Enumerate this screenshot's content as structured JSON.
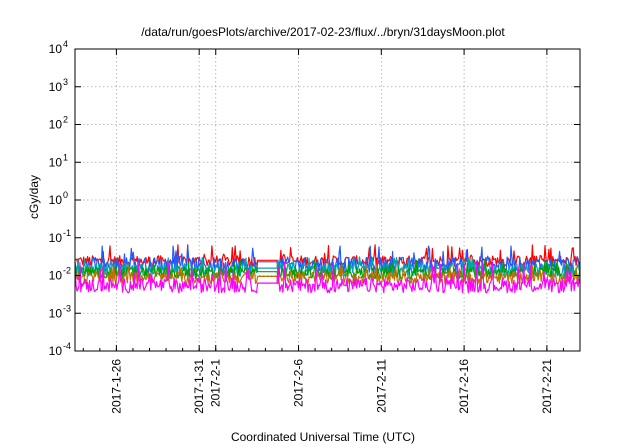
{
  "chart_data": {
    "type": "line",
    "title": "/data/run/goesPlots/archive/2017-02-23/flux/../bryn/31daysMoon.plot",
    "xlabel": "Coordinated Universal Time (UTC)",
    "ylabel": "cGy/day",
    "yscale": "log",
    "ylim": [
      0.0001,
      10000
    ],
    "xlim": [
      "2017-01-23T12:00",
      "2017-02-23T00:00"
    ],
    "grid": true,
    "legend": "none",
    "yticks": [
      {
        "value": 0.0001,
        "mantissa": "10",
        "exp": "-4"
      },
      {
        "value": 0.001,
        "mantissa": "10",
        "exp": "-3"
      },
      {
        "value": 0.01,
        "mantissa": "10",
        "exp": "-2"
      },
      {
        "value": 0.1,
        "mantissa": "10",
        "exp": "-1"
      },
      {
        "value": 1,
        "mantissa": "10",
        "exp": "0"
      },
      {
        "value": 10,
        "mantissa": "10",
        "exp": "1"
      },
      {
        "value": 100,
        "mantissa": "10",
        "exp": "2"
      },
      {
        "value": 1000,
        "mantissa": "10",
        "exp": "3"
      },
      {
        "value": 10000,
        "mantissa": "10",
        "exp": "4"
      }
    ],
    "xticks": [
      {
        "date": "2017-01-26",
        "label": "2017-1-26"
      },
      {
        "date": "2017-01-31",
        "label": "2017-1-31"
      },
      {
        "date": "2017-02-01",
        "label": "2017-2-1"
      },
      {
        "date": "2017-02-06",
        "label": "2017-2-6"
      },
      {
        "date": "2017-02-11",
        "label": "2017-2-11"
      },
      {
        "date": "2017-02-16",
        "label": "2017-2-16"
      },
      {
        "date": "2017-02-21",
        "label": "2017-2-21"
      }
    ],
    "series": [
      {
        "color": "#ff0000",
        "typical": 0.024,
        "low": 0.017,
        "high": 0.065
      },
      {
        "color": "#1f5cff",
        "typical": 0.022,
        "low": 0.012,
        "high": 0.06
      },
      {
        "color": "#00a8a8",
        "typical": 0.015,
        "low": 0.009,
        "high": 0.03
      },
      {
        "color": "#00a000",
        "typical": 0.012,
        "low": 0.008,
        "high": 0.025
      },
      {
        "color": "#c07000",
        "typical": 0.009,
        "low": 0.006,
        "high": 0.018
      },
      {
        "color": "#ff00ff",
        "typical": 0.006,
        "low": 0.0035,
        "high": 0.022
      }
    ],
    "gap": {
      "from": "2017-02-03T12:00",
      "to": "2017-02-04T18:00"
    }
  }
}
